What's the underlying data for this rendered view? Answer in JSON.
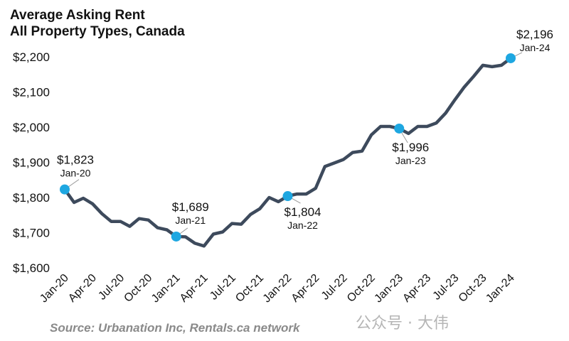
{
  "chart_data": {
    "type": "line",
    "title": "Average Asking Rent",
    "subtitle": "All Property Types, Canada",
    "source": "Source: Urbanation Inc, Rentals.ca network",
    "xlabel": "",
    "ylabel": "",
    "ylim": [
      1600,
      2200
    ],
    "yticks": [
      1600,
      1700,
      1800,
      1900,
      2000,
      2100,
      2200
    ],
    "ytick_labels": [
      "$1,600",
      "$1,700",
      "$1,800",
      "$1,900",
      "$2,000",
      "$2,100",
      "$2,200"
    ],
    "xtick_labels": [
      "Jan-20",
      "Apr-20",
      "Jul-20",
      "Oct-20",
      "Jan-21",
      "Apr-21",
      "Jul-21",
      "Oct-21",
      "Jan-22",
      "Apr-22",
      "Jul-22",
      "Oct-22",
      "Jan-23",
      "Apr-23",
      "Jul-23",
      "Oct-23",
      "Jan-24"
    ],
    "grid": false,
    "series": [
      {
        "name": "Average Asking Rent",
        "color": "#3d4a5c",
        "values": [
          1823,
          1786,
          1798,
          1782,
          1754,
          1732,
          1732,
          1718,
          1740,
          1736,
          1714,
          1708,
          1689,
          1688,
          1670,
          1662,
          1696,
          1702,
          1726,
          1724,
          1752,
          1768,
          1800,
          1788,
          1804,
          1810,
          1810,
          1826,
          1888,
          1898,
          1908,
          1928,
          1932,
          1978,
          2002,
          2002,
          1996,
          1982,
          2002,
          2002,
          2012,
          2040,
          2078,
          2114,
          2144,
          2176,
          2172,
          2176,
          2196
        ]
      }
    ],
    "marker_color": "#1ea7e1",
    "annotations": [
      {
        "index": 0,
        "value": "$1,823",
        "label": "Jan-20"
      },
      {
        "index": 12,
        "value": "$1,689",
        "label": "Jan-21"
      },
      {
        "index": 24,
        "value": "$1,804",
        "label": "Jan-22"
      },
      {
        "index": 36,
        "value": "$1,996",
        "label": "Jan-23"
      },
      {
        "index": 48,
        "value": "$2,196",
        "label": "Jan-24"
      }
    ]
  },
  "watermark": "公众号 · 大伟"
}
